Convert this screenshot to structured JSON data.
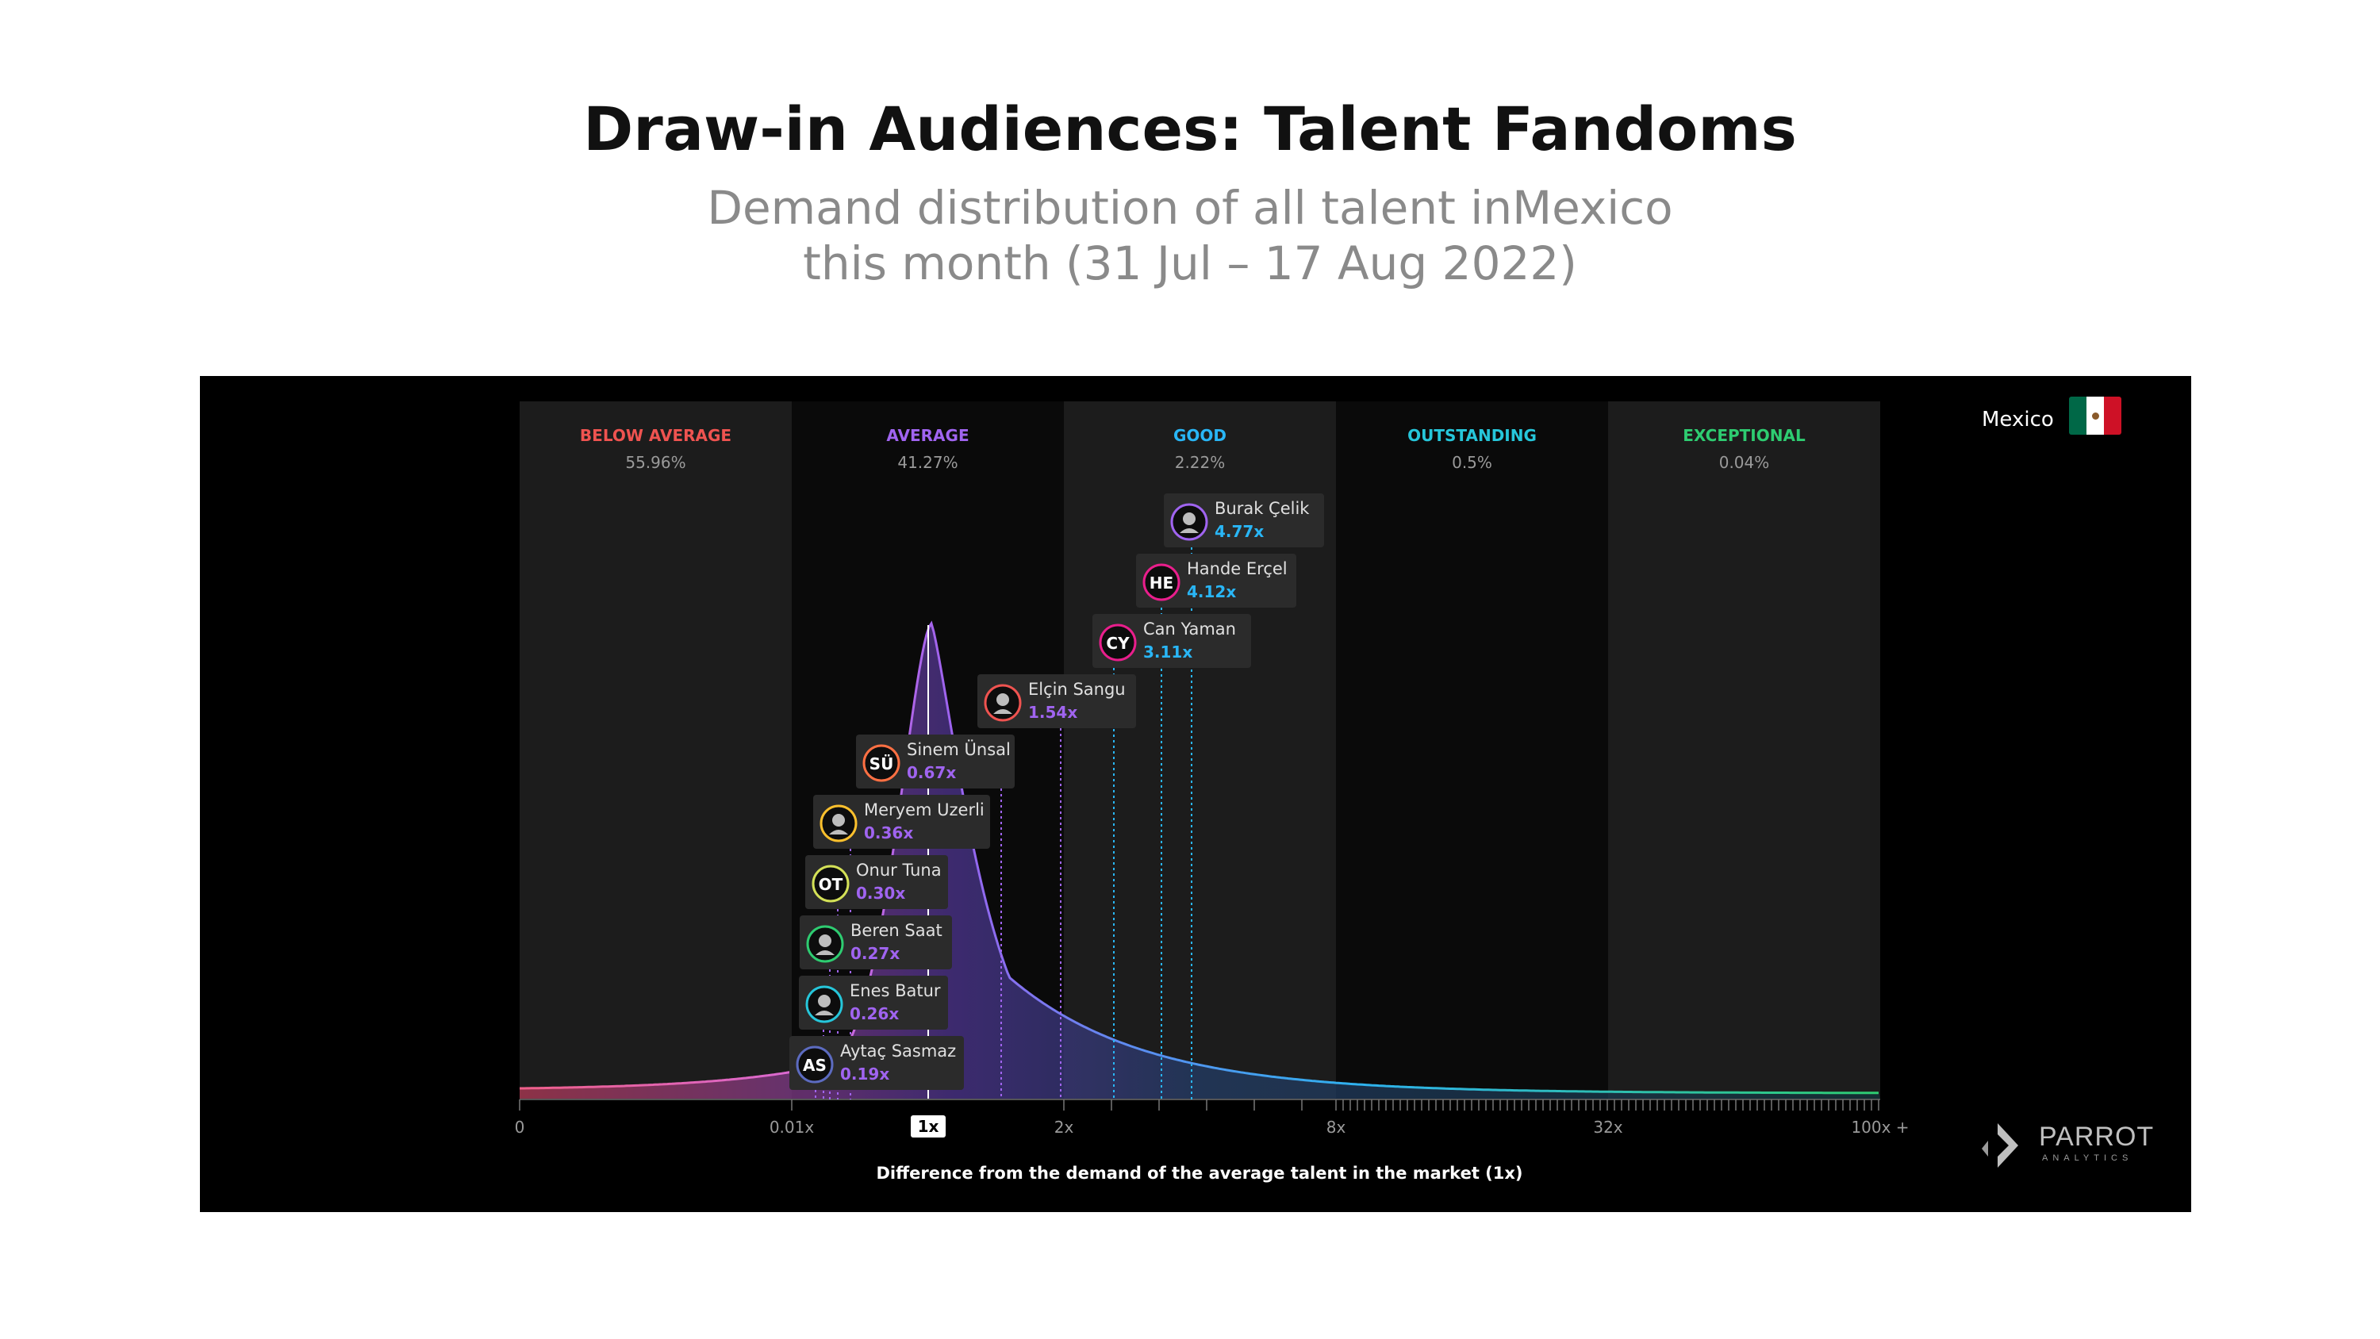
{
  "page": {
    "title": "Draw-in Audiences: Talent Fandoms",
    "subtitle_line1": "Demand distribution of all talent inMexico",
    "subtitle_line2": "this month (31 Jul – 17 Aug 2022)",
    "country": "Mexico",
    "flag_colors": [
      "#006847",
      "#ffffff",
      "#ce1126"
    ],
    "logo_text": "PARROT",
    "logo_subtext": "ANALYTICS"
  },
  "chart_data": {
    "type": "area",
    "title": "",
    "xlabel": "Difference from the demand of the average talent in the market (1x)",
    "ylabel": "",
    "x_ticks": [
      "0",
      "0.01x",
      "1x",
      "2x",
      "8x",
      "32x",
      "100x +"
    ],
    "x_scale": "piecewise (band-based)",
    "mean_marker": "1x",
    "bands": [
      {
        "name": "BELOW AVERAGE",
        "share": "55.96%",
        "color": "#ef5350"
      },
      {
        "name": "AVERAGE",
        "share": "41.27%",
        "color": "#a064f0"
      },
      {
        "name": "GOOD",
        "share": "2.22%",
        "color": "#29b6f6"
      },
      {
        "name": "OUTSTANDING",
        "share": "0.5%",
        "color": "#26c6da"
      },
      {
        "name": "EXCEPTIONAL",
        "share": "0.04%",
        "color": "#2ecc71"
      }
    ],
    "talents": [
      {
        "name": "Burak Çelik",
        "value": 4.77,
        "label": "4.77x",
        "band": "GOOD",
        "initials": "",
        "ring": "#a064f0",
        "photo": true
      },
      {
        "name": "Hande Erçel",
        "value": 4.12,
        "label": "4.12x",
        "band": "GOOD",
        "initials": "HE",
        "ring": "#e91e8c",
        "photo": false
      },
      {
        "name": "Can Yaman",
        "value": 3.11,
        "label": "3.11x",
        "band": "GOOD",
        "initials": "CY",
        "ring": "#e91e8c",
        "photo": false
      },
      {
        "name": "Elçin Sangu",
        "value": 1.54,
        "label": "1.54x",
        "band": "AVERAGE",
        "initials": "",
        "ring": "#ef5350",
        "photo": true
      },
      {
        "name": "Sinem Ünsal",
        "value": 0.67,
        "label": "0.67x",
        "band": "AVERAGE",
        "initials": "SÜ",
        "ring": "#ff7043",
        "photo": false
      },
      {
        "name": "Meryem Uzerli",
        "value": 0.36,
        "label": "0.36x",
        "band": "AVERAGE",
        "initials": "",
        "ring": "#fbc02d",
        "photo": true
      },
      {
        "name": "Onur Tuna",
        "value": 0.3,
        "label": "0.30x",
        "band": "AVERAGE",
        "initials": "OT",
        "ring": "#d4e157",
        "photo": false
      },
      {
        "name": "Beren Saat",
        "value": 0.27,
        "label": "0.27x",
        "band": "AVERAGE",
        "initials": "",
        "ring": "#2ecc71",
        "photo": true
      },
      {
        "name": "Enes Batur",
        "value": 0.26,
        "label": "0.26x",
        "band": "AVERAGE",
        "initials": "",
        "ring": "#26c6da",
        "photo": true
      },
      {
        "name": "Aytaç Sasmaz",
        "value": 0.19,
        "label": "0.19x",
        "band": "AVERAGE",
        "initials": "AS",
        "ring": "#5c6bc0",
        "photo": false
      }
    ],
    "grid": false,
    "legend": "none"
  }
}
